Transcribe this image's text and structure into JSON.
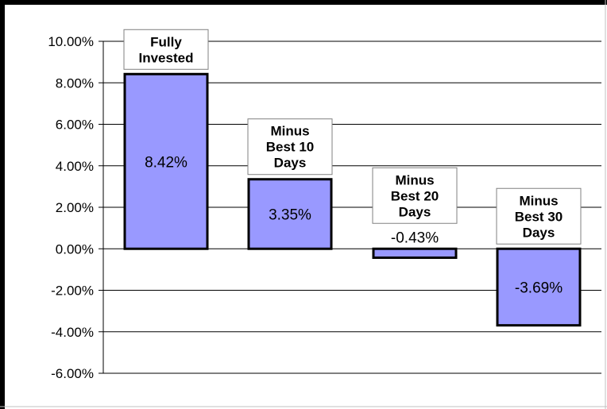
{
  "chart_data": {
    "type": "bar",
    "categories": [
      "Fully Invested",
      "Minus Best 10 Days",
      "Minus Best 20 Days",
      "Minus Best 30 Days"
    ],
    "category_label_lines": [
      [
        "Fully",
        "Invested"
      ],
      [
        "Minus",
        "Best 10",
        "Days"
      ],
      [
        "Minus",
        "Best 20",
        "Days"
      ],
      [
        "Minus",
        "Best 30",
        "Days"
      ]
    ],
    "values": [
      8.42,
      3.35,
      -0.43,
      -3.69
    ],
    "data_labels": [
      "8.42%",
      "3.35%",
      "-0.43%",
      "-3.69%"
    ],
    "data_label_placement": [
      "inside",
      "inside",
      "above",
      "inside"
    ],
    "y_ticks": [
      10,
      8,
      6,
      4,
      2,
      0,
      -2,
      -4,
      -6
    ],
    "y_tick_labels": [
      "10.00%",
      "8.00%",
      "6.00%",
      "4.00%",
      "2.00%",
      "0.00%",
      "-2.00%",
      "-4.00%",
      "-6.00%"
    ],
    "ylim": [
      -6,
      10
    ],
    "title": "",
    "xlabel": "",
    "ylabel": "",
    "grid": true,
    "legend": "none",
    "colors": {
      "bar_fill": "#9999ff",
      "bar_stroke": "#000000",
      "gridline": "#000000",
      "frame": "#000000",
      "label_box_fill": "#ffffff",
      "label_box_stroke": "#808080"
    }
  }
}
